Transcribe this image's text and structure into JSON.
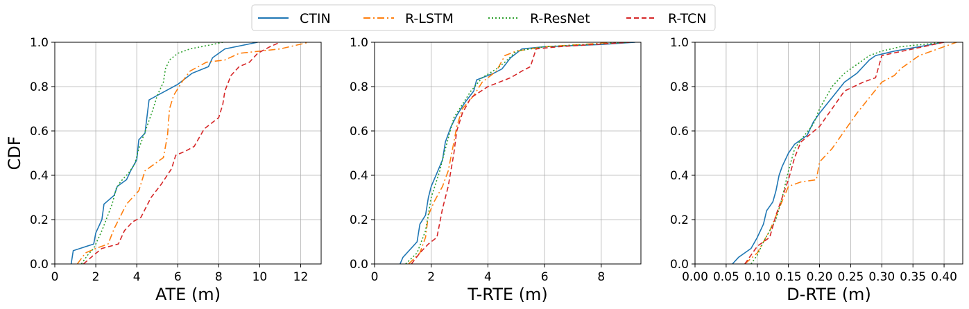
{
  "legend": {
    "placement": "top-center",
    "entries": [
      {
        "label": "CTIN",
        "color": "#1f77b4",
        "dash": "solid"
      },
      {
        "label": "R-LSTM",
        "color": "#ff7f0e",
        "dash": "dashdot"
      },
      {
        "label": "R-ResNet",
        "color": "#2ca02c",
        "dash": "dotted"
      },
      {
        "label": "R-TCN",
        "color": "#d62728",
        "dash": "dashed"
      }
    ]
  },
  "chart_data": [
    {
      "type": "line",
      "xlabel": "ATE (m)",
      "ylabel": "CDF",
      "xlim": [
        0,
        13
      ],
      "ylim": [
        0,
        1
      ],
      "xticks": [
        0,
        2,
        4,
        6,
        8,
        10,
        12
      ],
      "xtick_labels": [
        "0",
        "2",
        "4",
        "6",
        "8",
        "10",
        "12"
      ],
      "yticks": [
        0,
        0.2,
        0.4,
        0.6,
        0.8,
        1.0
      ],
      "ytick_labels": [
        "0.0",
        "0.2",
        "0.4",
        "0.6",
        "0.8",
        "1.0"
      ],
      "grid": true,
      "series": [
        {
          "name": "CTIN",
          "points": [
            [
              0.8,
              0
            ],
            [
              0.85,
              0.03
            ],
            [
              0.9,
              0.06
            ],
            [
              1.9,
              0.09
            ],
            [
              2.0,
              0.14
            ],
            [
              2.3,
              0.2
            ],
            [
              2.4,
              0.27
            ],
            [
              2.9,
              0.31
            ],
            [
              3.05,
              0.35
            ],
            [
              3.5,
              0.38
            ],
            [
              3.7,
              0.42
            ],
            [
              4.0,
              0.47
            ],
            [
              4.1,
              0.56
            ],
            [
              4.4,
              0.59
            ],
            [
              4.6,
              0.74
            ],
            [
              5.2,
              0.77
            ],
            [
              5.6,
              0.79
            ],
            [
              6.0,
              0.81
            ],
            [
              6.7,
              0.86
            ],
            [
              7.5,
              0.89
            ],
            [
              7.7,
              0.93
            ],
            [
              8.3,
              0.97
            ],
            [
              9.9,
              1.0
            ]
          ]
        },
        {
          "name": "R-LSTM",
          "points": [
            [
              1.1,
              0
            ],
            [
              1.5,
              0.05
            ],
            [
              2.0,
              0.07
            ],
            [
              2.6,
              0.09
            ],
            [
              2.9,
              0.16
            ],
            [
              3.5,
              0.27
            ],
            [
              4.1,
              0.33
            ],
            [
              4.4,
              0.42
            ],
            [
              5.3,
              0.48
            ],
            [
              5.5,
              0.58
            ],
            [
              5.6,
              0.7
            ],
            [
              5.8,
              0.76
            ],
            [
              6.2,
              0.82
            ],
            [
              6.6,
              0.87
            ],
            [
              7.4,
              0.91
            ],
            [
              8.3,
              0.92
            ],
            [
              9.0,
              0.95
            ],
            [
              10.0,
              0.96
            ],
            [
              11.0,
              0.97
            ],
            [
              12.4,
              1.0
            ]
          ]
        },
        {
          "name": "R-ResNet",
          "points": [
            [
              1.3,
              0
            ],
            [
              1.6,
              0.04
            ],
            [
              1.9,
              0.07
            ],
            [
              2.3,
              0.15
            ],
            [
              2.8,
              0.27
            ],
            [
              3.0,
              0.34
            ],
            [
              3.2,
              0.37
            ],
            [
              3.6,
              0.41
            ],
            [
              3.9,
              0.45
            ],
            [
              4.1,
              0.52
            ],
            [
              4.3,
              0.57
            ],
            [
              4.5,
              0.62
            ],
            [
              4.8,
              0.7
            ],
            [
              5.0,
              0.76
            ],
            [
              5.3,
              0.82
            ],
            [
              5.4,
              0.88
            ],
            [
              5.6,
              0.92
            ],
            [
              6.0,
              0.95
            ],
            [
              6.6,
              0.97
            ],
            [
              7.7,
              0.99
            ],
            [
              8.2,
              1.0
            ]
          ]
        },
        {
          "name": "R-TCN",
          "points": [
            [
              1.4,
              0
            ],
            [
              1.9,
              0.04
            ],
            [
              2.3,
              0.07
            ],
            [
              3.1,
              0.09
            ],
            [
              3.4,
              0.15
            ],
            [
              3.8,
              0.19
            ],
            [
              4.2,
              0.21
            ],
            [
              4.7,
              0.3
            ],
            [
              5.2,
              0.36
            ],
            [
              5.7,
              0.43
            ],
            [
              5.9,
              0.49
            ],
            [
              6.4,
              0.51
            ],
            [
              6.8,
              0.53
            ],
            [
              7.3,
              0.61
            ],
            [
              8.0,
              0.66
            ],
            [
              8.2,
              0.72
            ],
            [
              8.3,
              0.78
            ],
            [
              8.6,
              0.85
            ],
            [
              9.0,
              0.89
            ],
            [
              9.5,
              0.91
            ],
            [
              9.9,
              0.95
            ],
            [
              10.5,
              0.98
            ],
            [
              11.0,
              1.0
            ]
          ]
        }
      ]
    },
    {
      "type": "line",
      "xlabel": "T-RTE (m)",
      "ylabel": "",
      "xlim": [
        0,
        9.4
      ],
      "ylim": [
        0,
        1
      ],
      "xticks": [
        0,
        2,
        4,
        6,
        8
      ],
      "xtick_labels": [
        "0",
        "2",
        "4",
        "6",
        "8"
      ],
      "yticks": [
        0,
        0.2,
        0.4,
        0.6,
        0.8,
        1.0
      ],
      "ytick_labels": [
        "0.0",
        "0.2",
        "0.4",
        "0.6",
        "0.8",
        "1.0"
      ],
      "grid": true,
      "series": [
        {
          "name": "CTIN",
          "points": [
            [
              0.9,
              0
            ],
            [
              1.0,
              0.03
            ],
            [
              1.5,
              0.1
            ],
            [
              1.6,
              0.18
            ],
            [
              1.8,
              0.22
            ],
            [
              1.9,
              0.3
            ],
            [
              2.0,
              0.35
            ],
            [
              2.2,
              0.41
            ],
            [
              2.4,
              0.47
            ],
            [
              2.5,
              0.55
            ],
            [
              2.7,
              0.62
            ],
            [
              2.9,
              0.67
            ],
            [
              3.2,
              0.73
            ],
            [
              3.5,
              0.78
            ],
            [
              3.6,
              0.83
            ],
            [
              4.2,
              0.86
            ],
            [
              4.5,
              0.88
            ],
            [
              4.8,
              0.93
            ],
            [
              5.2,
              0.97
            ],
            [
              6.0,
              0.98
            ],
            [
              8.0,
              0.99
            ],
            [
              9.2,
              1.0
            ]
          ]
        },
        {
          "name": "R-LSTM",
          "points": [
            [
              1.2,
              0
            ],
            [
              1.6,
              0.05
            ],
            [
              1.8,
              0.12
            ],
            [
              1.9,
              0.22
            ],
            [
              2.1,
              0.28
            ],
            [
              2.4,
              0.35
            ],
            [
              2.6,
              0.42
            ],
            [
              2.8,
              0.55
            ],
            [
              2.9,
              0.62
            ],
            [
              3.1,
              0.7
            ],
            [
              3.5,
              0.76
            ],
            [
              3.8,
              0.82
            ],
            [
              4.3,
              0.87
            ],
            [
              4.6,
              0.94
            ],
            [
              5.0,
              0.96
            ],
            [
              6.0,
              0.98
            ],
            [
              8.5,
              1.0
            ]
          ]
        },
        {
          "name": "R-ResNet",
          "points": [
            [
              1.1,
              0
            ],
            [
              1.5,
              0.05
            ],
            [
              1.8,
              0.15
            ],
            [
              2.0,
              0.3
            ],
            [
              2.3,
              0.42
            ],
            [
              2.5,
              0.52
            ],
            [
              2.8,
              0.66
            ],
            [
              3.1,
              0.72
            ],
            [
              3.4,
              0.78
            ],
            [
              3.8,
              0.84
            ],
            [
              4.3,
              0.88
            ],
            [
              4.6,
              0.91
            ],
            [
              5.0,
              0.96
            ],
            [
              6.0,
              0.98
            ],
            [
              9.0,
              1.0
            ]
          ]
        },
        {
          "name": "R-TCN",
          "points": [
            [
              1.3,
              0
            ],
            [
              1.6,
              0.05
            ],
            [
              1.9,
              0.09
            ],
            [
              2.2,
              0.12
            ],
            [
              2.4,
              0.25
            ],
            [
              2.6,
              0.35
            ],
            [
              2.8,
              0.5
            ],
            [
              2.9,
              0.6
            ],
            [
              3.1,
              0.68
            ],
            [
              3.4,
              0.75
            ],
            [
              4.0,
              0.8
            ],
            [
              4.8,
              0.84
            ],
            [
              5.2,
              0.87
            ],
            [
              5.5,
              0.89
            ],
            [
              5.7,
              0.97
            ],
            [
              6.5,
              0.98
            ],
            [
              9.0,
              1.0
            ]
          ]
        }
      ]
    },
    {
      "type": "line",
      "xlabel": "D-RTE (m)",
      "ylabel": "",
      "xlim": [
        0,
        0.43
      ],
      "ylim": [
        0,
        1
      ],
      "xticks": [
        0,
        0.05,
        0.1,
        0.15,
        0.2,
        0.25,
        0.3,
        0.35,
        0.4
      ],
      "xtick_labels": [
        "0.00",
        "0.05",
        "0.10",
        "0.15",
        "0.20",
        "0.25",
        "0.30",
        "0.35",
        "0.40"
      ],
      "yticks": [
        0,
        0.2,
        0.4,
        0.6,
        0.8,
        1.0
      ],
      "ytick_labels": [
        "0.0",
        "0.2",
        "0.4",
        "0.6",
        "0.8",
        "1.0"
      ],
      "grid": true,
      "series": [
        {
          "name": "CTIN",
          "points": [
            [
              0.06,
              0
            ],
            [
              0.07,
              0.03
            ],
            [
              0.09,
              0.07
            ],
            [
              0.1,
              0.12
            ],
            [
              0.11,
              0.18
            ],
            [
              0.115,
              0.24
            ],
            [
              0.125,
              0.28
            ],
            [
              0.13,
              0.33
            ],
            [
              0.135,
              0.4
            ],
            [
              0.14,
              0.44
            ],
            [
              0.15,
              0.5
            ],
            [
              0.16,
              0.54
            ],
            [
              0.18,
              0.58
            ],
            [
              0.19,
              0.64
            ],
            [
              0.2,
              0.68
            ],
            [
              0.22,
              0.75
            ],
            [
              0.24,
              0.82
            ],
            [
              0.26,
              0.86
            ],
            [
              0.28,
              0.92
            ],
            [
              0.29,
              0.94
            ],
            [
              0.32,
              0.96
            ],
            [
              0.4,
              1.0
            ]
          ]
        },
        {
          "name": "R-LSTM",
          "points": [
            [
              0.08,
              0
            ],
            [
              0.1,
              0.05
            ],
            [
              0.12,
              0.15
            ],
            [
              0.135,
              0.25
            ],
            [
              0.15,
              0.35
            ],
            [
              0.17,
              0.37
            ],
            [
              0.195,
              0.38
            ],
            [
              0.2,
              0.46
            ],
            [
              0.22,
              0.52
            ],
            [
              0.24,
              0.6
            ],
            [
              0.26,
              0.68
            ],
            [
              0.28,
              0.75
            ],
            [
              0.3,
              0.82
            ],
            [
              0.32,
              0.85
            ],
            [
              0.33,
              0.88
            ],
            [
              0.36,
              0.94
            ],
            [
              0.4,
              0.98
            ],
            [
              0.42,
              1.0
            ]
          ]
        },
        {
          "name": "R-ResNet",
          "points": [
            [
              0.09,
              0
            ],
            [
              0.1,
              0.04
            ],
            [
              0.11,
              0.1
            ],
            [
              0.12,
              0.15
            ],
            [
              0.13,
              0.2
            ],
            [
              0.14,
              0.3
            ],
            [
              0.15,
              0.42
            ],
            [
              0.16,
              0.52
            ],
            [
              0.17,
              0.56
            ],
            [
              0.19,
              0.63
            ],
            [
              0.2,
              0.7
            ],
            [
              0.22,
              0.8
            ],
            [
              0.24,
              0.86
            ],
            [
              0.26,
              0.9
            ],
            [
              0.28,
              0.94
            ],
            [
              0.3,
              0.96
            ],
            [
              0.33,
              0.98
            ],
            [
              0.4,
              1.0
            ]
          ]
        },
        {
          "name": "R-TCN",
          "points": [
            [
              0.08,
              0
            ],
            [
              0.09,
              0.04
            ],
            [
              0.1,
              0.08
            ],
            [
              0.12,
              0.12
            ],
            [
              0.13,
              0.22
            ],
            [
              0.14,
              0.3
            ],
            [
              0.15,
              0.38
            ],
            [
              0.16,
              0.48
            ],
            [
              0.17,
              0.55
            ],
            [
              0.2,
              0.62
            ],
            [
              0.22,
              0.7
            ],
            [
              0.24,
              0.78
            ],
            [
              0.27,
              0.82
            ],
            [
              0.29,
              0.84
            ],
            [
              0.3,
              0.94
            ],
            [
              0.35,
              0.97
            ],
            [
              0.4,
              1.0
            ]
          ]
        }
      ]
    }
  ]
}
